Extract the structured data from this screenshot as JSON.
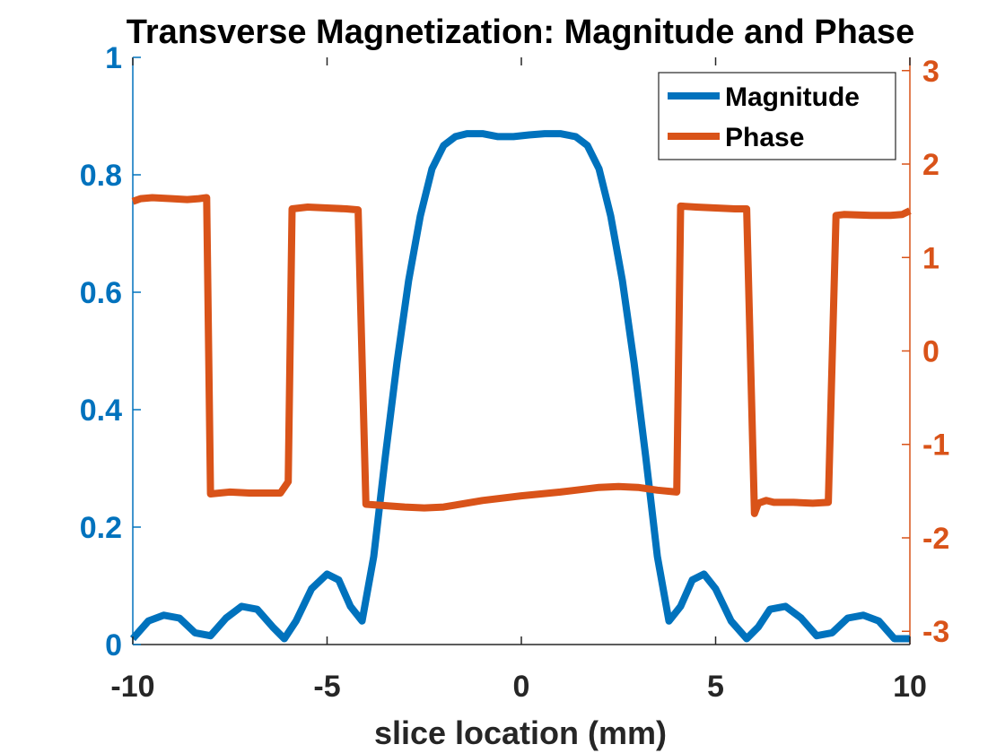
{
  "chart_data": {
    "type": "line",
    "title": "Transverse Magnetization:  Magnitude and Phase",
    "xlabel": "slice location (mm)",
    "ylabel_left": "",
    "ylabel_right": "",
    "xlim": [
      -10,
      10
    ],
    "ylim_left": [
      0,
      1
    ],
    "ylim_right": [
      -3.14159,
      3.14159
    ],
    "x_ticks": [
      -10,
      -5,
      0,
      5,
      10
    ],
    "x_tick_labels": [
      "-10",
      "-5",
      "0",
      "5",
      "10"
    ],
    "y_left_ticks": [
      0,
      0.2,
      0.4,
      0.6,
      0.8,
      1
    ],
    "y_left_tick_labels": [
      "0",
      "0.2",
      "0.4",
      "0.6",
      "0.8",
      "1"
    ],
    "y_right_ticks": [
      -3,
      -2,
      -1,
      0,
      1,
      2,
      3
    ],
    "y_right_tick_labels": [
      "-3",
      "-2",
      "-1",
      "0",
      "1",
      "2",
      "3"
    ],
    "grid": false,
    "legend_position": "top-right",
    "colors": {
      "magnitude": "#0072BD",
      "phase": "#D95319",
      "axis_text": "#262626"
    },
    "series": [
      {
        "name": "Magnitude",
        "axis": "left",
        "x": [
          -10,
          -9.6,
          -9.2,
          -8.8,
          -8.4,
          -8.0,
          -7.6,
          -7.2,
          -6.8,
          -6.4,
          -6.1,
          -5.8,
          -5.4,
          -5.0,
          -4.7,
          -4.4,
          -4.1,
          -3.8,
          -3.5,
          -3.2,
          -2.9,
          -2.6,
          -2.3,
          -2.0,
          -1.7,
          -1.4,
          -1.0,
          -0.6,
          -0.2,
          0.2,
          0.6,
          1.0,
          1.4,
          1.7,
          2.0,
          2.3,
          2.6,
          2.9,
          3.2,
          3.5,
          3.8,
          4.1,
          4.4,
          4.7,
          5.0,
          5.4,
          5.8,
          6.1,
          6.4,
          6.8,
          7.2,
          7.6,
          8.0,
          8.4,
          8.8,
          9.2,
          9.6,
          10
        ],
        "values": [
          0.01,
          0.04,
          0.05,
          0.045,
          0.02,
          0.015,
          0.045,
          0.065,
          0.06,
          0.03,
          0.01,
          0.04,
          0.095,
          0.12,
          0.11,
          0.065,
          0.04,
          0.15,
          0.32,
          0.48,
          0.62,
          0.73,
          0.81,
          0.85,
          0.865,
          0.87,
          0.87,
          0.865,
          0.865,
          0.868,
          0.87,
          0.87,
          0.865,
          0.85,
          0.81,
          0.73,
          0.62,
          0.48,
          0.32,
          0.15,
          0.04,
          0.065,
          0.11,
          0.12,
          0.095,
          0.04,
          0.01,
          0.03,
          0.06,
          0.065,
          0.045,
          0.015,
          0.02,
          0.045,
          0.05,
          0.04,
          0.01,
          0.01
        ]
      },
      {
        "name": "Phase",
        "axis": "right",
        "x": [
          -10,
          -9.8,
          -9.5,
          -9.0,
          -8.6,
          -8.3,
          -8.1,
          -8.0,
          -7.5,
          -7.0,
          -6.5,
          -6.2,
          -6.0,
          -5.9,
          -5.5,
          -5.0,
          -4.5,
          -4.2,
          -4.0,
          -3.0,
          -2.5,
          -2.0,
          -1.0,
          0.0,
          1.0,
          2.0,
          2.5,
          3.0,
          3.5,
          4.0,
          4.1,
          4.5,
          5.0,
          5.5,
          5.8,
          6.0,
          6.1,
          6.3,
          6.5,
          7.0,
          7.5,
          7.9,
          8.1,
          8.3,
          9.0,
          9.5,
          9.8,
          10
        ],
        "values": [
          1.6,
          1.63,
          1.64,
          1.63,
          1.62,
          1.63,
          1.64,
          -1.53,
          -1.51,
          -1.52,
          -1.52,
          -1.52,
          -1.4,
          1.52,
          1.54,
          1.53,
          1.52,
          1.51,
          -1.64,
          -1.67,
          -1.68,
          -1.67,
          -1.6,
          -1.55,
          -1.51,
          -1.46,
          -1.45,
          -1.46,
          -1.49,
          -1.51,
          1.55,
          1.54,
          1.53,
          1.52,
          1.52,
          -1.74,
          -1.63,
          -1.6,
          -1.62,
          -1.62,
          -1.63,
          -1.62,
          1.45,
          1.46,
          1.45,
          1.45,
          1.46,
          1.5
        ]
      }
    ]
  }
}
